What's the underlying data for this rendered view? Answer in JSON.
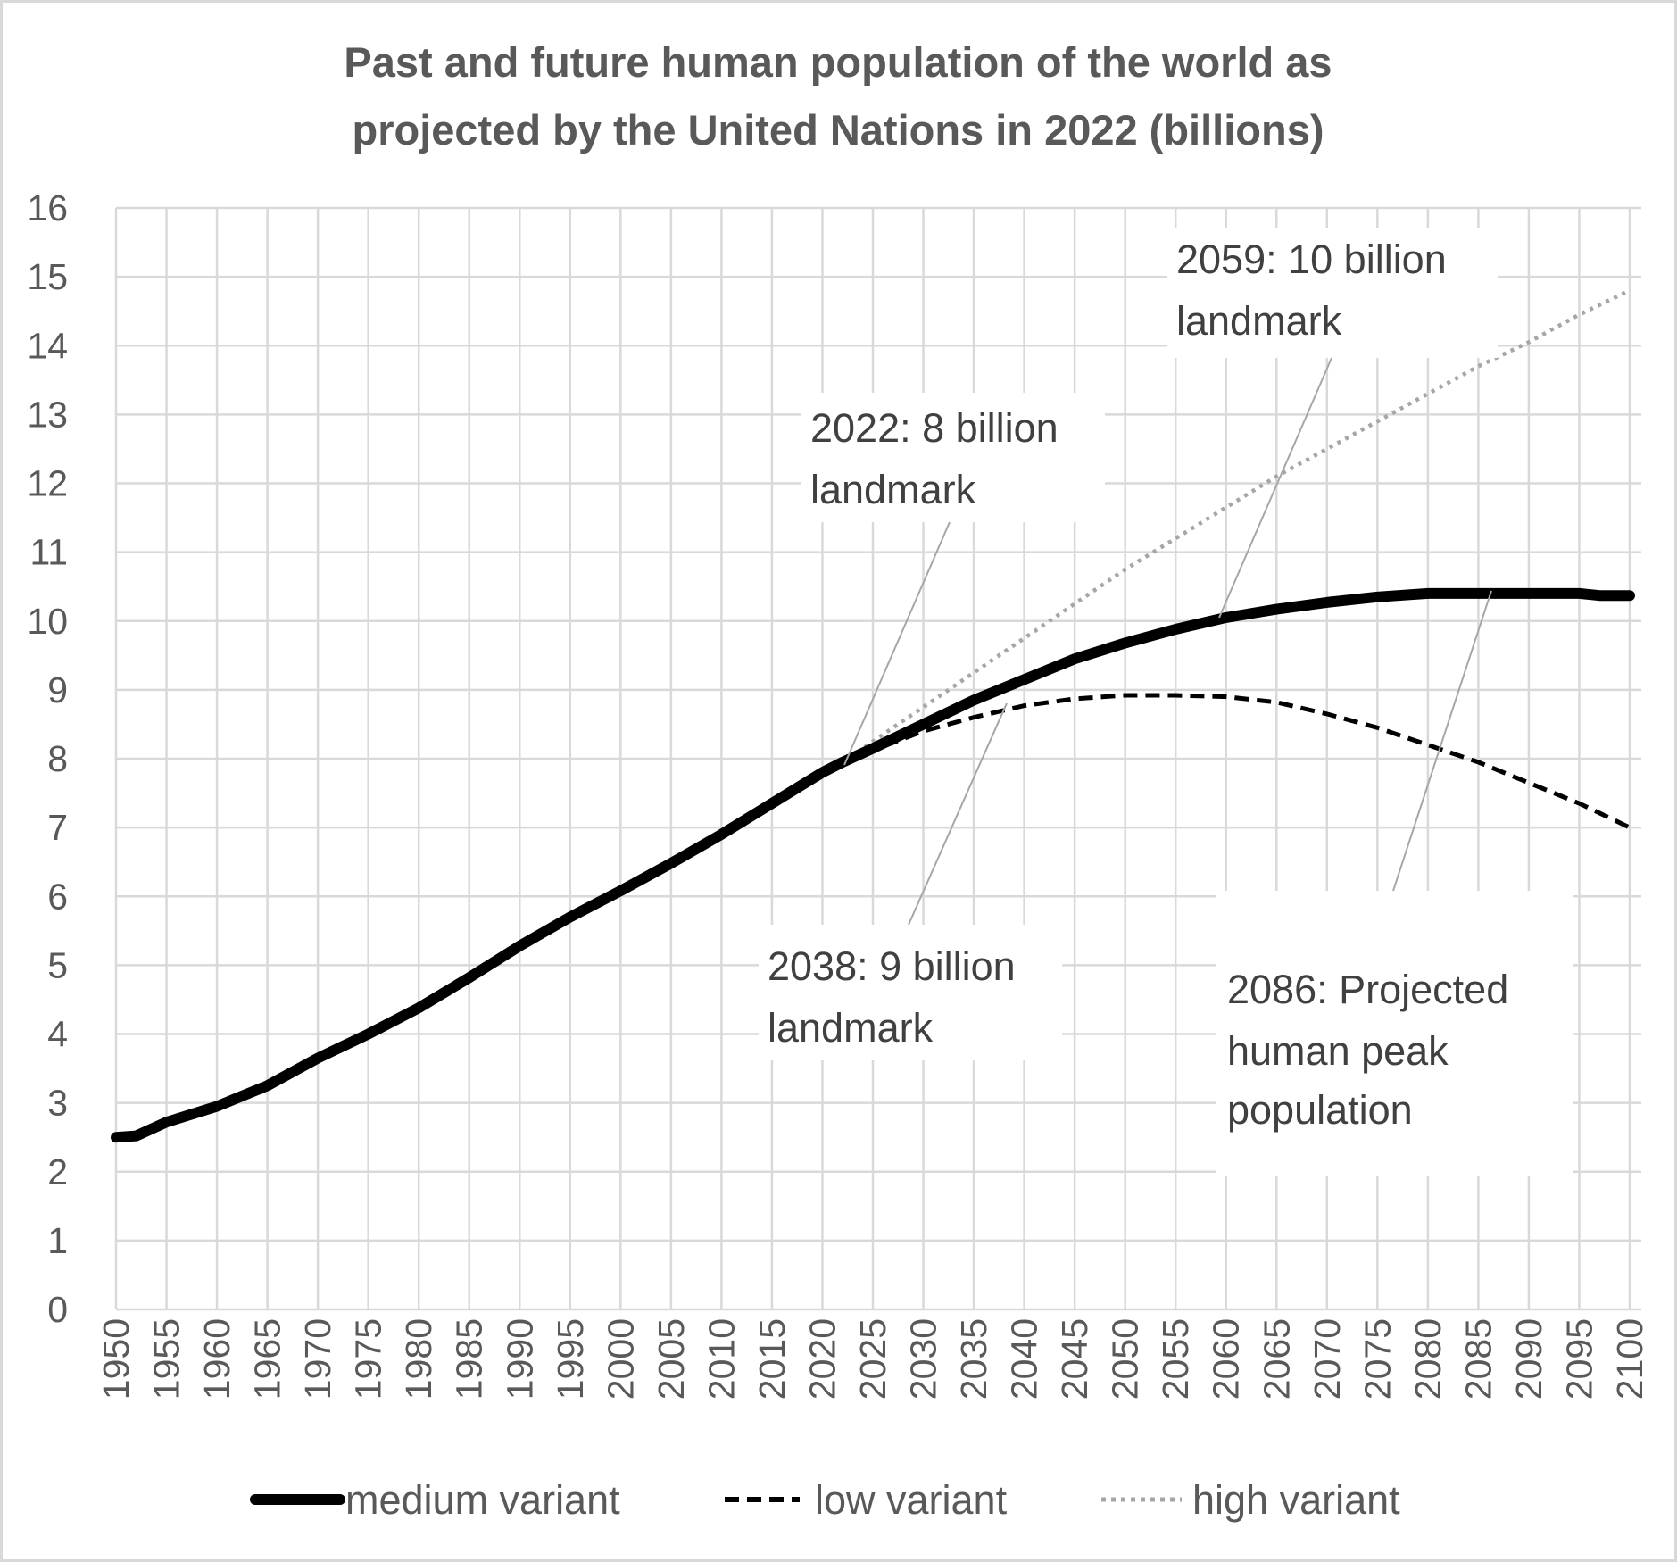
{
  "chart_data": {
    "type": "line",
    "title": [
      "Past and future human population of the world as",
      "projected by the United Nations in 2022 (billions)"
    ],
    "xlabel": "",
    "ylabel": "",
    "xlim": [
      1950,
      2100
    ],
    "ylim": [
      0,
      16
    ],
    "grid": true,
    "legend_position": "bottom",
    "y_ticks": [
      "0",
      "1",
      "2",
      "3",
      "4",
      "5",
      "6",
      "7",
      "8",
      "9",
      "10",
      "11",
      "12",
      "13",
      "14",
      "15",
      "16"
    ],
    "x_ticks": [
      "1950",
      "1955",
      "1960",
      "1965",
      "1970",
      "1975",
      "1980",
      "1985",
      "1990",
      "1995",
      "2000",
      "2005",
      "2010",
      "2015",
      "2020",
      "2025",
      "2030",
      "2035",
      "2040",
      "2045",
      "2050",
      "2055",
      "2060",
      "2065",
      "2070",
      "2075",
      "2080",
      "2085",
      "2090",
      "2095",
      "2100"
    ],
    "series": [
      {
        "name": "medium variant",
        "style": "solid",
        "color": "#000000",
        "x": [
          1950,
          1952,
          1955,
          1960,
          1965,
          1970,
          1975,
          1980,
          1985,
          1990,
          1995,
          2000,
          2005,
          2010,
          2015,
          2020,
          2022,
          2025,
          2030,
          2035,
          2040,
          2045,
          2050,
          2055,
          2060,
          2065,
          2070,
          2075,
          2080,
          2085,
          2090,
          2095,
          2097,
          2100
        ],
        "y": [
          2.5,
          2.52,
          2.72,
          2.95,
          3.25,
          3.65,
          4.0,
          4.38,
          4.82,
          5.28,
          5.7,
          6.08,
          6.48,
          6.9,
          7.35,
          7.8,
          7.95,
          8.15,
          8.5,
          8.85,
          9.15,
          9.45,
          9.68,
          9.88,
          10.05,
          10.17,
          10.27,
          10.35,
          10.4,
          10.4,
          10.4,
          10.4,
          10.37,
          10.37
        ]
      },
      {
        "name": "low variant",
        "style": "dashed",
        "color": "#000000",
        "x": [
          2022,
          2025,
          2030,
          2035,
          2040,
          2045,
          2050,
          2055,
          2060,
          2065,
          2070,
          2075,
          2080,
          2085,
          2090,
          2095,
          2100
        ],
        "y": [
          7.95,
          8.12,
          8.4,
          8.6,
          8.77,
          8.87,
          8.92,
          8.92,
          8.9,
          8.82,
          8.65,
          8.45,
          8.2,
          7.95,
          7.65,
          7.35,
          7.0
        ]
      },
      {
        "name": "high variant",
        "style": "dotted",
        "color": "#a6a6a6",
        "x": [
          2022,
          2025,
          2030,
          2035,
          2040,
          2045,
          2050,
          2055,
          2060,
          2065,
          2070,
          2075,
          2080,
          2085,
          2090,
          2095,
          2100
        ],
        "y": [
          7.95,
          8.25,
          8.75,
          9.25,
          9.75,
          10.25,
          10.75,
          11.2,
          11.65,
          12.1,
          12.5,
          12.9,
          13.3,
          13.7,
          14.05,
          14.45,
          14.8
        ]
      }
    ],
    "annotations": [
      {
        "lines": [
          "2022: 8 billion",
          "landmark"
        ],
        "year": 2022,
        "value": 8
      },
      {
        "lines": [
          "2059: 10 billion",
          "landmark"
        ],
        "year": 2059,
        "value": 10
      },
      {
        "lines": [
          "2038: 9 billion",
          "landmark"
        ],
        "year": 2038,
        "value": 9
      },
      {
        "lines": [
          "2086: Projected",
          "human peak",
          "population"
        ],
        "year": 2086,
        "value": 10.4
      }
    ]
  }
}
